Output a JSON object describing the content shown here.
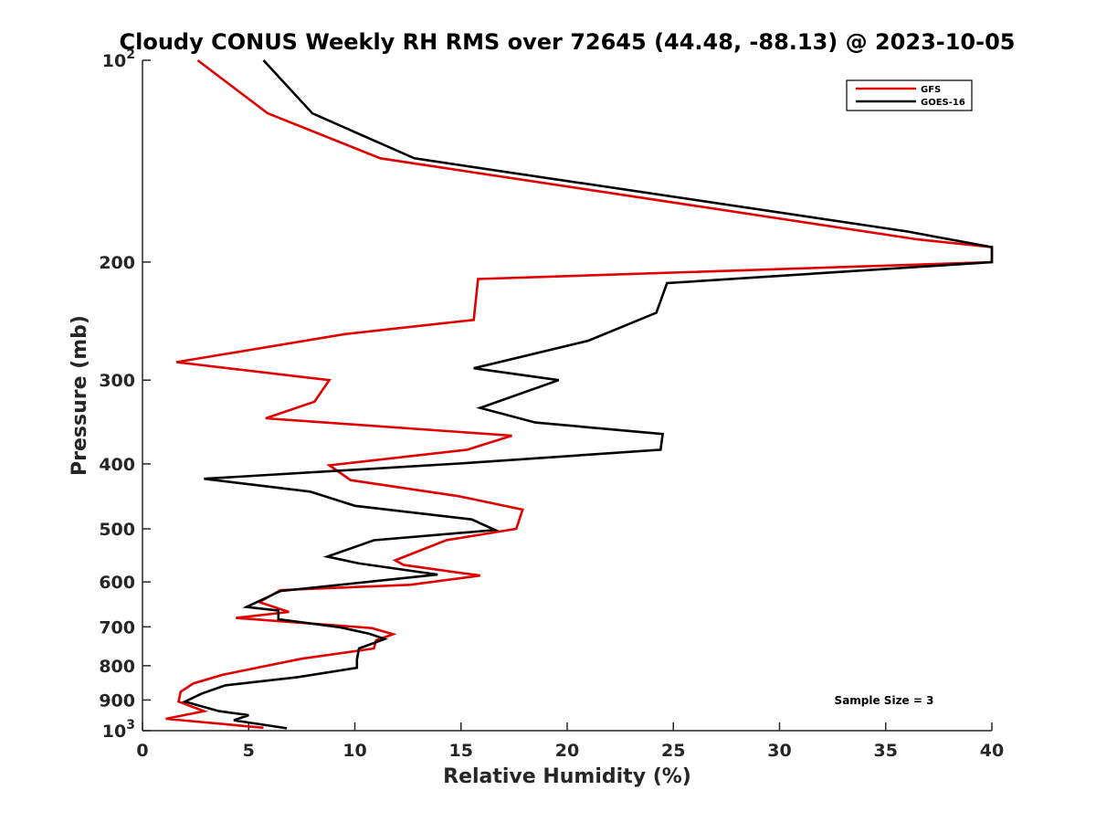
{
  "chart_data": {
    "type": "line",
    "title": "Cloudy CONUS Weekly RH RMS over 72645 (44.48, -88.13) @ 2023-10-05",
    "xlabel": "Relative Humidity (%)",
    "ylabel": "Pressure (mb)",
    "xlim": [
      0,
      40
    ],
    "ylim": [
      100,
      1000
    ],
    "y_scale": "log",
    "y_reversed": true,
    "x_ticks": [
      0,
      5,
      10,
      15,
      20,
      25,
      30,
      35,
      40
    ],
    "x_tick_labels": [
      "0",
      "5",
      "10",
      "15",
      "20",
      "25",
      "30",
      "35",
      "40"
    ],
    "y_ticks": [
      100,
      200,
      300,
      400,
      500,
      600,
      700,
      800,
      900,
      1000
    ],
    "y_tick_labels": [
      {
        "base": "10",
        "exp": "2"
      },
      {
        "base": "200",
        "exp": ""
      },
      {
        "base": "300",
        "exp": ""
      },
      {
        "base": "400",
        "exp": ""
      },
      {
        "base": "500",
        "exp": ""
      },
      {
        "base": "600",
        "exp": ""
      },
      {
        "base": "700",
        "exp": ""
      },
      {
        "base": "800",
        "exp": ""
      },
      {
        "base": "900",
        "exp": ""
      },
      {
        "base": "10",
        "exp": "3"
      }
    ],
    "grid": false,
    "legend_position": "top-right",
    "annotation": "Sample Size = 3",
    "series": [
      {
        "name": "GFS",
        "color": "#e00000",
        "points": [
          [
            2.6,
            100
          ],
          [
            5.9,
            120
          ],
          [
            11.2,
            140
          ],
          [
            36.5,
            185
          ],
          [
            40,
            190
          ],
          [
            40,
            200
          ],
          [
            15.8,
            212
          ],
          [
            15.6,
            244
          ],
          [
            9.6,
            256
          ],
          [
            1.6,
            282
          ],
          [
            8.8,
            300
          ],
          [
            8.1,
            323
          ],
          [
            5.8,
            342
          ],
          [
            17.4,
            363
          ],
          [
            15.3,
            381
          ],
          [
            8.8,
            402
          ],
          [
            9.8,
            423
          ],
          [
            14.9,
            447
          ],
          [
            17.9,
            468
          ],
          [
            17.6,
            500
          ],
          [
            14.3,
            520
          ],
          [
            11.9,
            557
          ],
          [
            12.3,
            566
          ],
          [
            15.9,
            587
          ],
          [
            12.6,
            606
          ],
          [
            6.5,
            617
          ],
          [
            5.5,
            643
          ],
          [
            6.9,
            665
          ],
          [
            4.4,
            679
          ],
          [
            10.8,
            703
          ],
          [
            11.8,
            718
          ],
          [
            11.0,
            733
          ],
          [
            10.9,
            754
          ],
          [
            7.5,
            781
          ],
          [
            3.8,
            825
          ],
          [
            2.4,
            850
          ],
          [
            1.8,
            875
          ],
          [
            1.7,
            905
          ],
          [
            2.9,
            935
          ],
          [
            1.1,
            960
          ],
          [
            5.7,
            990
          ]
        ]
      },
      {
        "name": "GOES-16",
        "color": "#000000",
        "points": [
          [
            5.7,
            100
          ],
          [
            8.0,
            120
          ],
          [
            12.8,
            140
          ],
          [
            36.0,
            180
          ],
          [
            40,
            190
          ],
          [
            40,
            200
          ],
          [
            24.7,
            215
          ],
          [
            24.2,
            238
          ],
          [
            21.0,
            262
          ],
          [
            15.6,
            288
          ],
          [
            19.6,
            300
          ],
          [
            15.9,
            330
          ],
          [
            18.5,
            347
          ],
          [
            24.5,
            361
          ],
          [
            24.4,
            381
          ],
          [
            15.2,
            399
          ],
          [
            2.9,
            421
          ],
          [
            7.9,
            440
          ],
          [
            10.0,
            462
          ],
          [
            15.5,
            484
          ],
          [
            16.6,
            502
          ],
          [
            10.9,
            520
          ],
          [
            8.7,
            550
          ],
          [
            10.2,
            563
          ],
          [
            13.9,
            585
          ],
          [
            6.5,
            619
          ],
          [
            4.9,
            654
          ],
          [
            6.4,
            662
          ],
          [
            6.4,
            682
          ],
          [
            9.3,
            701
          ],
          [
            10.7,
            717
          ],
          [
            11.4,
            730
          ],
          [
            10.2,
            754
          ],
          [
            10.1,
            783
          ],
          [
            10.1,
            806
          ],
          [
            7.3,
            832
          ],
          [
            3.9,
            856
          ],
          [
            2.8,
            880
          ],
          [
            2.0,
            905
          ],
          [
            3.6,
            935
          ],
          [
            5.0,
            948
          ],
          [
            4.3,
            965
          ],
          [
            6.8,
            992
          ]
        ]
      }
    ]
  }
}
